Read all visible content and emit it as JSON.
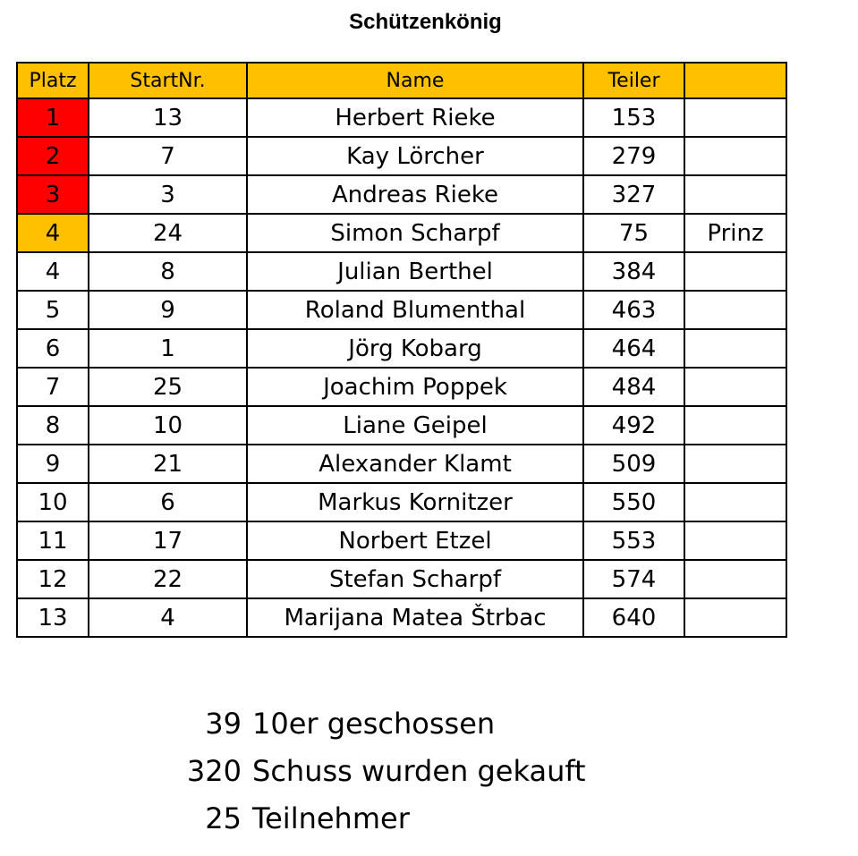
{
  "title": "Schützenkönig",
  "table": {
    "headers": [
      "Platz",
      "StartNr.",
      "Name",
      "Teiler",
      ""
    ],
    "rows": [
      {
        "platz": "1",
        "startnr": "13",
        "name": "Herbert Rieke",
        "teiler": "153",
        "note": "",
        "highlight": "red"
      },
      {
        "platz": "2",
        "startnr": "7",
        "name": "Kay Lörcher",
        "teiler": "279",
        "note": "",
        "highlight": "red"
      },
      {
        "platz": "3",
        "startnr": "3",
        "name": "Andreas Rieke",
        "teiler": "327",
        "note": "",
        "highlight": "red"
      },
      {
        "platz": "4",
        "startnr": "24",
        "name": "Simon Scharpf",
        "teiler": "75",
        "note": "Prinz",
        "highlight": "gold"
      },
      {
        "platz": "4",
        "startnr": "8",
        "name": "Julian Berthel",
        "teiler": "384",
        "note": "",
        "highlight": ""
      },
      {
        "platz": "5",
        "startnr": "9",
        "name": "Roland Blumenthal",
        "teiler": "463",
        "note": "",
        "highlight": ""
      },
      {
        "platz": "6",
        "startnr": "1",
        "name": "Jörg Kobarg",
        "teiler": "464",
        "note": "",
        "highlight": ""
      },
      {
        "platz": "7",
        "startnr": "25",
        "name": "Joachim Poppek",
        "teiler": "484",
        "note": "",
        "highlight": ""
      },
      {
        "platz": "8",
        "startnr": "10",
        "name": "Liane Geipel",
        "teiler": "492",
        "note": "",
        "highlight": ""
      },
      {
        "platz": "9",
        "startnr": "21",
        "name": "Alexander Klamt",
        "teiler": "509",
        "note": "",
        "highlight": ""
      },
      {
        "platz": "10",
        "startnr": "6",
        "name": "Markus Kornitzer",
        "teiler": "550",
        "note": "",
        "highlight": ""
      },
      {
        "platz": "11",
        "startnr": "17",
        "name": "Norbert Etzel",
        "teiler": "553",
        "note": "",
        "highlight": ""
      },
      {
        "platz": "12",
        "startnr": "22",
        "name": "Stefan Scharpf",
        "teiler": "574",
        "note": "",
        "highlight": ""
      },
      {
        "platz": "13",
        "startnr": "4",
        "name": "Marijana Matea Štrbac",
        "teiler": "640",
        "note": "",
        "highlight": ""
      }
    ]
  },
  "colors": {
    "header_bg": "#ffc000",
    "top3_bg": "#ff0000",
    "prinz_bg": "#ffc000"
  },
  "summary": [
    {
      "value": "39",
      "label": "10er geschossen"
    },
    {
      "value": "320",
      "label": "Schuss wurden gekauft"
    },
    {
      "value": "25",
      "label": "Teilnehmer"
    }
  ]
}
